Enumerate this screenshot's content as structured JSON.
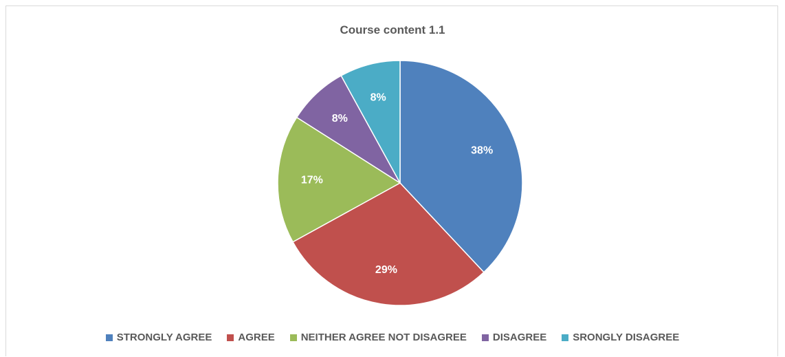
{
  "chart_data": {
    "type": "pie",
    "title": "Course content 1.1",
    "slices": [
      {
        "label": "STRONGLY AGREE",
        "value": 38,
        "display": "38%",
        "color": "#4f81bd"
      },
      {
        "label": "AGREE",
        "value": 29,
        "display": "29%",
        "color": "#c0504d"
      },
      {
        "label": "NEITHER AGREE NOT DISAGREE",
        "value": 17,
        "display": "17%",
        "color": "#9bbb59"
      },
      {
        "label": "DISAGREE",
        "value": 8,
        "display": "8%",
        "color": "#8064a2"
      },
      {
        "label": "SRONGLY DISAGREE",
        "value": 8,
        "display": "8%",
        "color": "#4bacc6"
      }
    ],
    "legend_position": "bottom",
    "start": "12 o'clock, clockwise"
  }
}
